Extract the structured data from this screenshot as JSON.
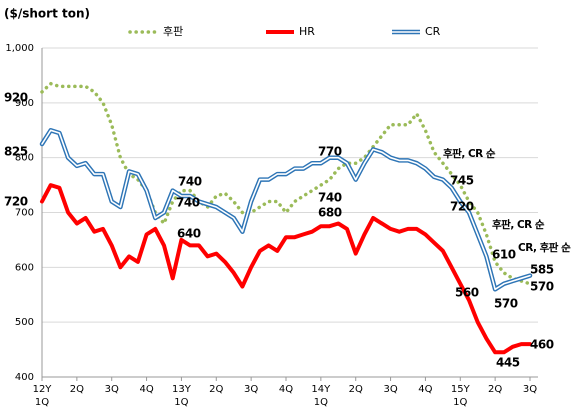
{
  "chart_data": {
    "type": "line",
    "title": "($/short ton)",
    "x": [
      0,
      0.25,
      0.5,
      0.75,
      1,
      1.25,
      1.5,
      1.75,
      2,
      2.25,
      2.5,
      2.75,
      3,
      3.25,
      3.5,
      3.75,
      4,
      4.25,
      4.5,
      4.75,
      5,
      5.25,
      5.5,
      5.75,
      6,
      6.25,
      6.5,
      6.75,
      7,
      7.25,
      7.5,
      7.75,
      8,
      8.25,
      8.5,
      8.75,
      9,
      9.25,
      9.5,
      9.75,
      10,
      10.25,
      10.5,
      10.75,
      11,
      11.25,
      11.5,
      11.75,
      12,
      12.25,
      12.5,
      12.75,
      13,
      13.25,
      13.5,
      13.75,
      14
    ],
    "xlim": [
      0,
      14
    ],
    "xticks": [
      {
        "value": 0,
        "label": "1Q"
      },
      {
        "value": 1,
        "label": "2Q"
      },
      {
        "value": 2,
        "label": "3Q"
      },
      {
        "value": 3,
        "label": "4Q"
      },
      {
        "value": 4,
        "label": "1Q"
      },
      {
        "value": 5,
        "label": "2Q"
      },
      {
        "value": 6,
        "label": "3Q"
      },
      {
        "value": 7,
        "label": "4Q"
      },
      {
        "value": 8,
        "label": "1Q"
      },
      {
        "value": 9,
        "label": "2Q"
      },
      {
        "value": 10,
        "label": "3Q"
      },
      {
        "value": 11,
        "label": "4Q"
      },
      {
        "value": 12,
        "label": "1Q"
      },
      {
        "value": 13,
        "label": "2Q"
      },
      {
        "value": 14,
        "label": "3Q"
      }
    ],
    "year_labels": [
      {
        "value": 0,
        "label": "12Y"
      },
      {
        "value": 4,
        "label": "13Y"
      },
      {
        "value": 8,
        "label": "14Y"
      },
      {
        "value": 12,
        "label": "15Y"
      }
    ],
    "ylim": [
      400,
      1000
    ],
    "yticks": [
      400,
      500,
      600,
      700,
      800,
      900,
      {
        "value": 1000,
        "label": "1,000"
      }
    ],
    "grid": true,
    "legend": "top",
    "series": [
      {
        "name": "후판",
        "color": "#9bbb59",
        "style": "dotted",
        "values": [
          920,
          935,
          930,
          930,
          930,
          930,
          920,
          900,
          860,
          800,
          770,
          760,
          740,
          700,
          680,
          720,
          740,
          740,
          720,
          710,
          730,
          735,
          720,
          700,
          700,
          710,
          720,
          720,
          700,
          720,
          730,
          740,
          750,
          760,
          780,
          790,
          790,
          800,
          820,
          840,
          860,
          860,
          860,
          880,
          850,
          810,
          790,
          770,
          750,
          720,
          700,
          660,
          610,
          590,
          580,
          575,
          570
        ]
      },
      {
        "name": "HR",
        "color": "#ff0000",
        "style": "solid",
        "values": [
          720,
          750,
          745,
          700,
          680,
          690,
          665,
          670,
          640,
          600,
          620,
          610,
          660,
          670,
          640,
          580,
          650,
          640,
          640,
          620,
          625,
          610,
          590,
          565,
          600,
          630,
          640,
          630,
          655,
          655,
          660,
          665,
          675,
          675,
          680,
          670,
          625,
          660,
          690,
          680,
          670,
          665,
          670,
          670,
          660,
          645,
          630,
          600,
          570,
          540,
          500,
          470,
          445,
          445,
          455,
          460,
          460
        ]
      },
      {
        "name": "CR",
        "color": "#2e75b6",
        "style": "double",
        "values": [
          825,
          850,
          845,
          800,
          785,
          790,
          770,
          770,
          720,
          710,
          775,
          770,
          740,
          690,
          700,
          740,
          730,
          730,
          720,
          715,
          710,
          700,
          690,
          665,
          720,
          760,
          760,
          770,
          770,
          780,
          780,
          790,
          790,
          800,
          800,
          790,
          760,
          790,
          815,
          810,
          800,
          795,
          795,
          790,
          780,
          765,
          760,
          745,
          720,
          700,
          660,
          620,
          560,
          570,
          575,
          580,
          585
        ]
      }
    ],
    "annotations": [
      "920",
      "825",
      "720",
      "740",
      "740",
      "640",
      "770",
      "740",
      "680",
      "후판, CR 순",
      "745",
      "720",
      "560",
      "후판, CR 순",
      "610",
      "570",
      "CR, 후판 순",
      "585",
      "570",
      "445",
      "460"
    ]
  }
}
